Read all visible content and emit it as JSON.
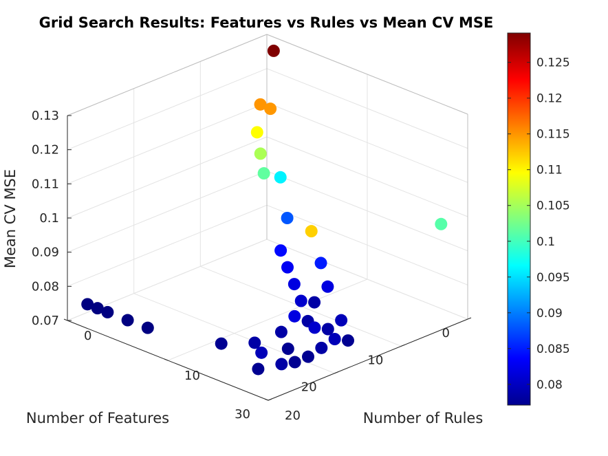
{
  "chart_data": {
    "type": "scatter",
    "title": "Grid Search Results: Features vs Rules vs Mean CV MSE",
    "xlabel": "Number of Features",
    "ylabel": "Number of Rules",
    "zlabel": "Mean CV MSE",
    "xlim": [
      0,
      30
    ],
    "ylim": [
      0,
      20
    ],
    "zlim": [
      0.07,
      0.13
    ],
    "xticks": [
      "0",
      "10",
      "20",
      "30"
    ],
    "yticks": [
      "0",
      "10",
      "20"
    ],
    "zticks": [
      "0.07",
      "0.08",
      "0.09",
      "0.1",
      "0.11",
      "0.12",
      "0.13"
    ],
    "colormap": "jet",
    "clim": [
      0.0771,
      0.1291
    ],
    "colorbar_ticks": [
      "0.08",
      "0.085",
      "0.09",
      "0.095",
      "0.1",
      "0.105",
      "0.11",
      "0.115",
      "0.12",
      "0.125"
    ],
    "grid": true,
    "points": [
      {
        "x": 2,
        "y": 2,
        "z": 0.1291
      },
      {
        "x": 4,
        "y": 2,
        "z": 0.115
      },
      {
        "x": 4,
        "y": 3,
        "z": 0.1149
      },
      {
        "x": 6,
        "y": 3,
        "z": 0.1096
      },
      {
        "x": 7,
        "y": 4,
        "z": 0.1053
      },
      {
        "x": 8,
        "y": 5,
        "z": 0.1015
      },
      {
        "x": 4,
        "y": 4,
        "z": 0.096
      },
      {
        "x": 6,
        "y": 6,
        "z": 0.088
      },
      {
        "x": 10,
        "y": 8,
        "z": 0.084
      },
      {
        "x": 12,
        "y": 10,
        "z": 0.083
      },
      {
        "x": 16,
        "y": 14,
        "z": 0.081
      },
      {
        "x": 18,
        "y": 16,
        "z": 0.079
      },
      {
        "x": 14,
        "y": 12,
        "z": 0.082
      },
      {
        "x": 14,
        "y": 14,
        "z": 0.079
      },
      {
        "x": 10,
        "y": 12,
        "z": 0.085
      },
      {
        "x": 12,
        "y": 14,
        "z": 0.082
      },
      {
        "x": 16,
        "y": 18,
        "z": 0.08
      },
      {
        "x": 18,
        "y": 18,
        "z": 0.079
      },
      {
        "x": 18,
        "y": 20,
        "z": 0.078
      },
      {
        "x": 20,
        "y": 20,
        "z": 0.08
      },
      {
        "x": 22,
        "y": 20,
        "z": 0.079
      },
      {
        "x": 24,
        "y": 20,
        "z": 0.078
      },
      {
        "x": 20,
        "y": 18,
        "z": 0.081
      },
      {
        "x": 20,
        "y": 16,
        "z": 0.082
      },
      {
        "x": 22,
        "y": 16,
        "z": 0.079
      },
      {
        "x": 24,
        "y": 18,
        "z": 0.078
      },
      {
        "x": 26,
        "y": 20,
        "z": 0.078
      },
      {
        "x": 28,
        "y": 20,
        "z": 0.079
      },
      {
        "x": 28,
        "y": 18,
        "z": 0.08
      },
      {
        "x": 26,
        "y": 16,
        "z": 0.079
      },
      {
        "x": 4,
        "y": 20,
        "z": 0.101
      },
      {
        "x": 22,
        "y": 19,
        "z": 0.112
      },
      {
        "x": 30,
        "y": 19,
        "z": 0.078
      },
      {
        "x": 28,
        "y": 14,
        "z": 0.078
      },
      {
        "x": 30,
        "y": 6,
        "z": 0.0771
      },
      {
        "x": 30,
        "y": 8,
        "z": 0.0772
      },
      {
        "x": 30,
        "y": 4,
        "z": 0.0771
      },
      {
        "x": 30,
        "y": 3,
        "z": 0.0771
      },
      {
        "x": 30,
        "y": 2,
        "z": 0.0771
      }
    ]
  }
}
